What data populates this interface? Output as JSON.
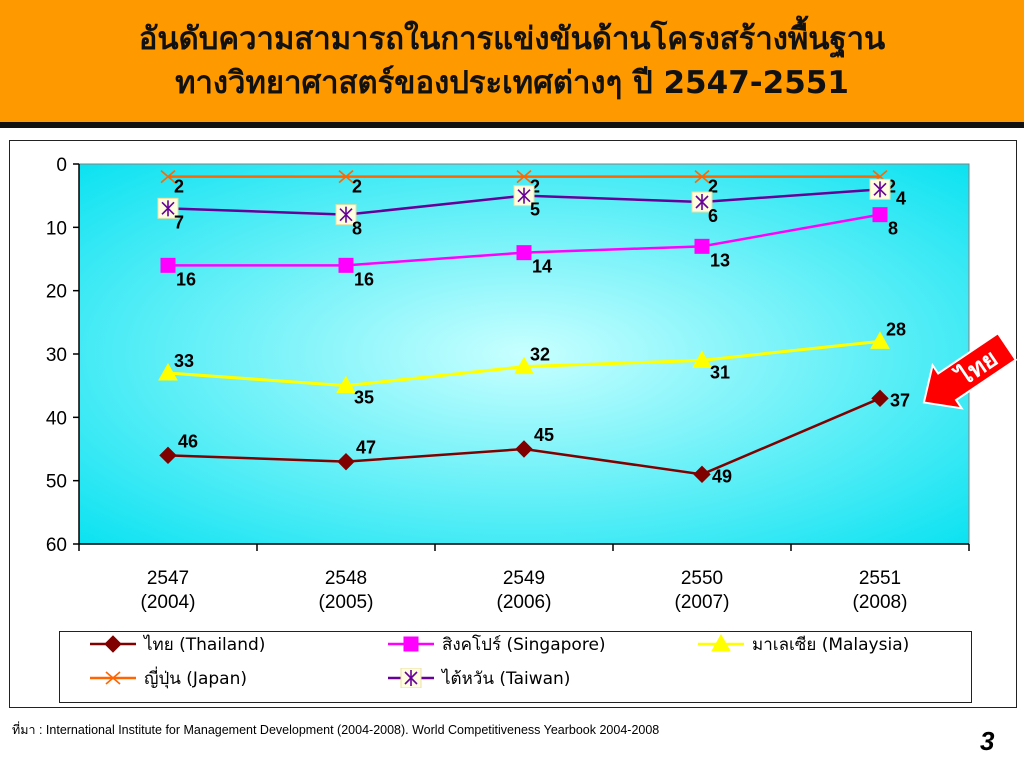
{
  "slide": {
    "title_line1": "อันดับความสามารถในการแข่งขันด้านโครงสร้างพื้นฐาน",
    "title_line2": "ทางวิทยาศาสตร์ของประเทศต่างๆ ปี 2547-2551",
    "source_label": "ที่มา",
    "source_text": " : International Institute for Management Development (2004-2008). World Competitiveness Yearbook 2004-2008",
    "slide_number": "3",
    "callout_text": "ไทย",
    "colors": {
      "header": "#ff9900",
      "plot_bg_light": "#c8ffff",
      "plot_bg": "#00e0f0",
      "callout": "#ff0000"
    }
  },
  "chart_data": {
    "type": "line",
    "title": "",
    "xlabel": "",
    "ylabel": "",
    "ylim": [
      0,
      60
    ],
    "y_inverted": true,
    "y_ticks": [
      "0",
      "10",
      "20",
      "30",
      "40",
      "50",
      "60"
    ],
    "categories": [
      "2547\n(2004)",
      "2548\n(2005)",
      "2549\n(2006)",
      "2550\n(2007)",
      "2551\n(2008)"
    ],
    "category_lines": [
      [
        "2547",
        "(2004)"
      ],
      [
        "2548",
        "(2005)"
      ],
      [
        "2549",
        "(2006)"
      ],
      [
        "2550",
        "(2007)"
      ],
      [
        "2551",
        "(2008)"
      ]
    ],
    "grid": false,
    "legend_position": "bottom",
    "series": [
      {
        "name": "ไทย (Thailand)",
        "color": "#800000",
        "marker": "diamond",
        "values": [
          46,
          47,
          45,
          49,
          37
        ]
      },
      {
        "name": "สิงคโปร์ (Singapore)",
        "color": "#ff00ff",
        "marker": "square",
        "values": [
          16,
          16,
          14,
          13,
          8
        ]
      },
      {
        "name": "มาเลเซีย (Malaysia)",
        "color": "#ffff00",
        "marker": "triangle",
        "values": [
          33,
          35,
          32,
          31,
          28
        ]
      },
      {
        "name": "ญี่ปุ่น (Japan)",
        "color": "#ff6600",
        "marker": "x",
        "values": [
          2,
          2,
          2,
          2,
          2
        ]
      },
      {
        "name": "ไต้หวัน (Taiwan)",
        "color": "#660099",
        "marker": "star",
        "values": [
          7,
          8,
          5,
          6,
          4
        ]
      }
    ]
  }
}
